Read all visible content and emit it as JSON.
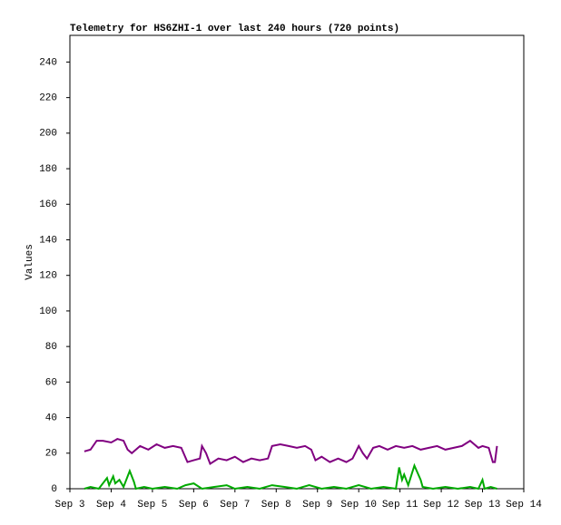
{
  "chart_data": {
    "type": "line",
    "title": "Telemetry for HS6ZHI-1 over last 240 hours (720 points)",
    "y_label": "Values",
    "xlim": [
      3,
      14
    ],
    "xticks": [
      {
        "value": 3,
        "label": "Sep 3"
      },
      {
        "value": 4,
        "label": "Sep 4"
      },
      {
        "value": 5,
        "label": "Sep 5"
      },
      {
        "value": 6,
        "label": "Sep 6"
      },
      {
        "value": 7,
        "label": "Sep 7"
      },
      {
        "value": 8,
        "label": "Sep 8"
      },
      {
        "value": 9,
        "label": "Sep 9"
      },
      {
        "value": 10,
        "label": "Sep 10"
      },
      {
        "value": 11,
        "label": "Sep 11"
      },
      {
        "value": 12,
        "label": "Sep 12"
      },
      {
        "value": 13,
        "label": "Sep 13"
      },
      {
        "value": 14,
        "label": "Sep 14"
      }
    ],
    "ylim": [
      0,
      255
    ],
    "yticks": [
      0,
      20,
      40,
      60,
      80,
      100,
      120,
      140,
      160,
      180,
      200,
      220,
      240
    ],
    "series": [
      {
        "color": "#800080",
        "x": [
          3.35,
          3.5,
          3.65,
          3.8,
          4.0,
          4.15,
          4.3,
          4.4,
          4.5,
          4.7,
          4.9,
          5.1,
          5.3,
          5.5,
          5.7,
          5.85,
          6.0,
          6.15,
          6.2,
          6.3,
          6.4,
          6.6,
          6.8,
          7.0,
          7.2,
          7.4,
          7.6,
          7.8,
          7.9,
          8.1,
          8.3,
          8.5,
          8.7,
          8.85,
          8.95,
          9.1,
          9.3,
          9.5,
          9.7,
          9.85,
          10.0,
          10.1,
          10.2,
          10.35,
          10.5,
          10.7,
          10.9,
          11.1,
          11.3,
          11.5,
          11.7,
          11.9,
          12.1,
          12.3,
          12.5,
          12.7,
          12.9,
          13.0,
          13.15,
          13.25,
          13.3,
          13.35
        ],
        "values": [
          21,
          22,
          27,
          27,
          26,
          28,
          27,
          22,
          20,
          24,
          22,
          25,
          23,
          24,
          23,
          15,
          16,
          17,
          24,
          20,
          14,
          17,
          16,
          18,
          15,
          17,
          16,
          17,
          24,
          25,
          24,
          23,
          24,
          22,
          16,
          18,
          15,
          17,
          15,
          17,
          24,
          20,
          17,
          23,
          24,
          22,
          24,
          23,
          24,
          22,
          23,
          24,
          22,
          23,
          24,
          27,
          23,
          24,
          23,
          15,
          15,
          24
        ]
      },
      {
        "color": "#00aa00",
        "x": [
          3.35,
          3.5,
          3.7,
          3.9,
          3.95,
          4.05,
          4.1,
          4.2,
          4.3,
          4.45,
          4.55,
          4.6,
          4.8,
          5.0,
          5.3,
          5.6,
          5.8,
          6.0,
          6.2,
          6.5,
          6.8,
          7.0,
          7.3,
          7.6,
          7.9,
          8.2,
          8.5,
          8.8,
          9.1,
          9.4,
          9.7,
          10.0,
          10.3,
          10.6,
          10.9,
          10.98,
          11.05,
          11.1,
          11.2,
          11.35,
          11.5,
          11.55,
          11.8,
          12.1,
          12.4,
          12.7,
          12.9,
          13.0,
          13.05,
          13.2,
          13.35
        ],
        "values": [
          0,
          1,
          0,
          6,
          2,
          7,
          3,
          5,
          1,
          10,
          4,
          0,
          1,
          0,
          1,
          0,
          2,
          3,
          0,
          1,
          2,
          0,
          1,
          0,
          2,
          1,
          0,
          2,
          0,
          1,
          0,
          2,
          0,
          1,
          0,
          12,
          5,
          8,
          2,
          13,
          5,
          1,
          0,
          1,
          0,
          1,
          0,
          5,
          0,
          1,
          0
        ]
      }
    ]
  }
}
